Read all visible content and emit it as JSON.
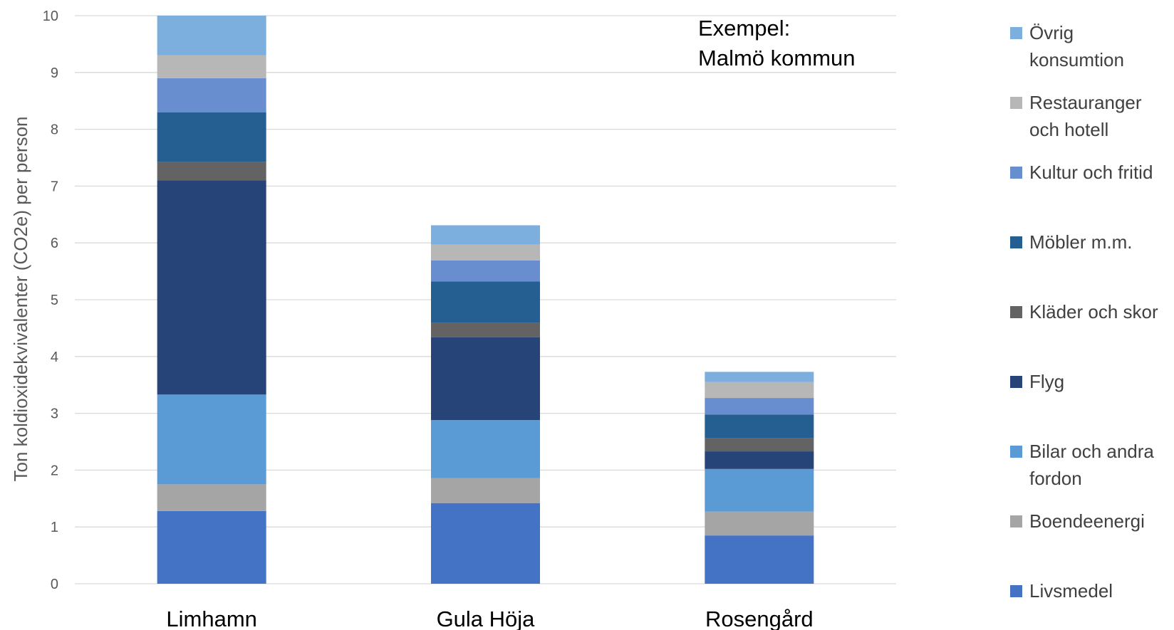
{
  "chart_data": {
    "type": "bar",
    "stacked": true,
    "title": "",
    "xlabel": "",
    "ylabel": "Ton koldioxidekvivalenter (CO2e) per person",
    "ylim": [
      0,
      10
    ],
    "yticks": [
      0,
      1,
      2,
      3,
      4,
      5,
      6,
      7,
      8,
      9,
      10
    ],
    "grid": true,
    "legend_position": "right",
    "annotation": [
      "Exempel:",
      "Malmö kommun"
    ],
    "categories": [
      "Limhamn",
      "Gula Höja",
      "Rosengård"
    ],
    "series": [
      {
        "name": "Livsmedel",
        "color": "#4472C4",
        "values": [
          1.28,
          1.42,
          0.85
        ]
      },
      {
        "name": "Boendeenergi",
        "color": "#A5A5A5",
        "values": [
          0.47,
          0.44,
          0.42
        ]
      },
      {
        "name": "Bilar och andra fordon",
        "color": "#5B9BD5",
        "values": [
          1.58,
          1.02,
          0.75
        ]
      },
      {
        "name": "Flyg",
        "color": "#264478",
        "values": [
          3.77,
          1.46,
          0.31
        ]
      },
      {
        "name": "Kläder och skor",
        "color": "#636363",
        "values": [
          0.33,
          0.25,
          0.23
        ]
      },
      {
        "name": "Möbler m.m.",
        "color": "#255E91",
        "values": [
          0.87,
          0.73,
          0.42
        ]
      },
      {
        "name": "Kultur och fritid",
        "color": "#698ED0",
        "values": [
          0.6,
          0.37,
          0.29
        ]
      },
      {
        "name": "Restauranger och hotell",
        "color": "#B7B7B7",
        "values": [
          0.4,
          0.28,
          0.28
        ]
      },
      {
        "name": "Övrig konsumtion",
        "color": "#7CAFDD",
        "values": [
          0.7,
          0.34,
          0.18
        ]
      }
    ],
    "legend_lines": [
      [
        "Övrig",
        "konsumtion"
      ],
      [
        "Restauranger",
        "och hotell"
      ],
      [
        "Kultur och fritid"
      ],
      [
        "Möbler m.m."
      ],
      [
        "Kläder och skor"
      ],
      [
        "Flyg"
      ],
      [
        "Bilar och andra",
        "fordon"
      ],
      [
        "Boendeenergi"
      ],
      [
        "Livsmedel"
      ]
    ]
  }
}
